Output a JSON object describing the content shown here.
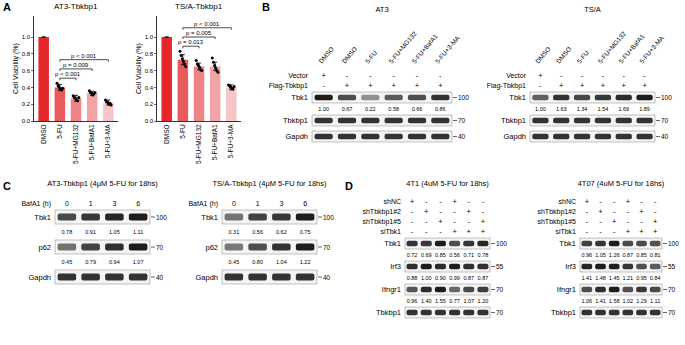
{
  "chart_data": [
    {
      "type": "bar",
      "title": "AT3-Tbkbp1",
      "y_label": "Cell Viability (%)",
      "categories": [
        "DMSO",
        "5-FU",
        "5-FU+MG132",
        "5-FU+BafA1",
        "5-FU+3-MA"
      ],
      "values": [
        1.0,
        0.4,
        0.27,
        0.33,
        0.22
      ],
      "errors": [
        0,
        0.035,
        0.035,
        0.025,
        0.03
      ],
      "points": [
        [],
        [
          0.45,
          0.42,
          0.4,
          0.38,
          0.37,
          0.39
        ],
        [
          0.3,
          0.28,
          0.27,
          0.25,
          0.24,
          0.28
        ],
        [
          0.36,
          0.34,
          0.33,
          0.31,
          0.32,
          0.34
        ],
        [
          0.25,
          0.23,
          0.22,
          0.2,
          0.21,
          0.19
        ]
      ],
      "colors": [
        "#e5262b",
        "#e85a5c",
        "#ee8486",
        "#f2a3a5",
        "#f7c5c7"
      ],
      "ylim": [
        0,
        1.25
      ],
      "yticks": [
        {
          "value": 0,
          "label": "0.0"
        },
        {
          "value": 0.2,
          "label": "0.2"
        },
        {
          "value": 0.4,
          "label": "0.4"
        },
        {
          "value": 0.6,
          "label": "0.6"
        },
        {
          "value": 0.8,
          "label": "0.8"
        },
        {
          "value": 1,
          "label": "1.0"
        }
      ],
      "comparisons": [
        {
          "from": "5-FU",
          "to": "5-FU+MG132",
          "label": "p < 0.001"
        },
        {
          "from": "5-FU",
          "to": "5-FU+BafA1",
          "label": "p = 0.009"
        },
        {
          "from": "5-FU",
          "to": "5-FU+3-MA",
          "label": "p < 0.001"
        }
      ]
    },
    {
      "type": "bar",
      "title": "TS/A-Tbkbp1",
      "y_label": "Cell Viability (%)",
      "categories": [
        "DMSO",
        "5-FU",
        "5-FU+MG132",
        "5-FU+BafA1",
        "5-FU+3-MA"
      ],
      "values": [
        1.0,
        0.73,
        0.65,
        0.65,
        0.4
      ],
      "errors": [
        0,
        0.06,
        0.04,
        0.05,
        0.03
      ],
      "points": [
        [],
        [
          0.83,
          0.78,
          0.74,
          0.71,
          0.68,
          0.65
        ],
        [
          0.72,
          0.68,
          0.66,
          0.64,
          0.61,
          0.6
        ],
        [
          0.75,
          0.7,
          0.66,
          0.63,
          0.6,
          0.58
        ],
        [
          0.43,
          0.42,
          0.4,
          0.39,
          0.38,
          0.41
        ]
      ],
      "colors": [
        "#e5262b",
        "#e85a5c",
        "#ee8486",
        "#f2a3a5",
        "#f7c5c7"
      ],
      "ylim": [
        0,
        1.25
      ],
      "yticks": [
        {
          "value": 0,
          "label": "0.0"
        },
        {
          "value": 0.2,
          "label": "0.2"
        },
        {
          "value": 0.4,
          "label": "0.4"
        },
        {
          "value": 0.6,
          "label": "0.6"
        },
        {
          "value": 0.8,
          "label": "0.8"
        },
        {
          "value": 1,
          "label": "1.0"
        }
      ],
      "comparisons": [
        {
          "from": "5-FU",
          "to": "5-FU+MG132",
          "label": "p = 0.013"
        },
        {
          "from": "5-FU",
          "to": "5-FU+BafA1",
          "label": "p = 0.005"
        },
        {
          "from": "5-FU",
          "to": "5-FU+3-MA",
          "label": "p < 0.001"
        }
      ]
    }
  ],
  "panel_labels": [
    "A",
    "B",
    "C",
    "D"
  ],
  "blots": {
    "B": [
      {
        "title": "AT3",
        "lanes": [
          "DMSO",
          "DMSO",
          "5-FU",
          "5-FU+MG132",
          "5-FU+BafA1",
          "5-FU+3-MA"
        ],
        "conditions": [
          {
            "name": "Vector",
            "signs": [
              "+",
              "-",
              "-",
              "-",
              "-",
              "-"
            ]
          },
          {
            "name": "Flag-Tbkbp1",
            "signs": [
              "-",
              "+",
              "+",
              "+",
              "+",
              "+"
            ]
          }
        ],
        "bands": [
          {
            "name": "Tbk1",
            "kda": "100",
            "quant": [
              "1.00",
              "0.67",
              "0.22",
              "0.58",
              "0.66",
              "0.86"
            ]
          },
          {
            "name": "Tbkbp1",
            "kda": "70"
          },
          {
            "name": "Gapdh",
            "kda": "40"
          }
        ]
      },
      {
        "title": "TS/A",
        "lanes": [
          "DMSO",
          "DMSO",
          "5-FU",
          "5-FU+MG132",
          "5-FU+BafA1",
          "5-FU+3-MA"
        ],
        "conditions": [
          {
            "name": "Vector",
            "signs": [
              "+",
              "-",
              "-",
              "-",
              "-",
              "-"
            ]
          },
          {
            "name": "Flag-Tbkbp1",
            "signs": [
              "-",
              "+",
              "+",
              "+",
              "+",
              "+"
            ]
          }
        ],
        "bands": [
          {
            "name": "Tbk1",
            "kda": "100",
            "quant": [
              "1.00",
              "1.63",
              "1.34",
              "1.54",
              "1.69",
              "1.89"
            ]
          },
          {
            "name": "Tbkbp1",
            "kda": "70"
          },
          {
            "name": "Gapdh",
            "kda": "40"
          }
        ]
      }
    ],
    "C": [
      {
        "title": "AT3-Tbkbp1 (4μM 5-FU for 18hs)",
        "time_label": "BafA1 (h)",
        "times": [
          "0",
          "1",
          "3",
          "6"
        ],
        "bands": [
          {
            "name": "Tbk1",
            "kda": "100",
            "quant": [
              "0.78",
              "0.91",
              "1.05",
              "1.11"
            ]
          },
          {
            "name": "p62",
            "kda": "70",
            "quant": [
              "0.45",
              "0.79",
              "0.94",
              "1.07"
            ]
          },
          {
            "name": "Gapdh",
            "kda": "40"
          }
        ]
      },
      {
        "title": "TS/A-Tbkbp1 (4μM 5-FU for 18hs)",
        "time_label": "BafA1 (h)",
        "times": [
          "0",
          "1",
          "3",
          "6"
        ],
        "bands": [
          {
            "name": "Tbk1",
            "kda": "100",
            "quant": [
              "0.31",
              "0.56",
              "0.62",
              "0.75"
            ]
          },
          {
            "name": "p62",
            "kda": "70",
            "quant": [
              "0.45",
              "0.80",
              "1.04",
              "1.22"
            ]
          },
          {
            "name": "Gapdh",
            "kda": "40"
          }
        ]
      }
    ],
    "D": [
      {
        "title": "4T1 (4uM 5-FU for 18hs)",
        "conditions": [
          {
            "name": "shNC",
            "signs": [
              "+",
              "-",
              "-",
              "+",
              "-",
              "-"
            ]
          },
          {
            "name": "shTbkbp1#2",
            "signs": [
              "-",
              "+",
              "-",
              "-",
              "+",
              "-"
            ]
          },
          {
            "name": "shTbkbp1#5",
            "signs": [
              "-",
              "-",
              "+",
              "-",
              "-",
              "+"
            ]
          },
          {
            "name": "siTbk1",
            "signs": [
              "-",
              "-",
              "-",
              "+",
              "+",
              "+"
            ]
          }
        ],
        "bands": [
          {
            "name": "Tbk1",
            "kda": "100",
            "quant": [
              "0.72",
              "0.69",
              "0.85",
              "0.56",
              "0.71",
              "0.78"
            ]
          },
          {
            "name": "Irf3",
            "kda": "55",
            "quant": [
              "0.88",
              "1.00",
              "0.90",
              "0.99",
              "0.87",
              "0.87"
            ]
          },
          {
            "name": "Ifngr1",
            "kda": "70",
            "quant": [
              "0.96",
              "1.40",
              "1.55",
              "0.77",
              "1.07",
              "1.20"
            ]
          },
          {
            "name": "Tbkbp1",
            "kda": "70"
          }
        ]
      },
      {
        "title": "4T07 (4uM 5-FU for 18hs)",
        "conditions": [
          {
            "name": "shNC",
            "signs": [
              "+",
              "-",
              "-",
              "+",
              "-",
              "-"
            ]
          },
          {
            "name": "shTbkbp1#2",
            "signs": [
              "-",
              "+",
              "-",
              "-",
              "+",
              "-"
            ]
          },
          {
            "name": "shTbkbp1#5",
            "signs": [
              "-",
              "-",
              "+",
              "-",
              "-",
              "+"
            ]
          },
          {
            "name": "siTbk1",
            "signs": [
              "-",
              "-",
              "-",
              "+",
              "+",
              "+"
            ]
          }
        ],
        "bands": [
          {
            "name": "Tbk1",
            "kda": "100",
            "quant": [
              "0.96",
              "1.05",
              "1.26",
              "0.87",
              "0.85",
              "0.81"
            ]
          },
          {
            "name": "Irf3",
            "kda": "55",
            "quant": [
              "1.41",
              "1.48",
              "1.45",
              "1.21",
              "0.95",
              "0.84"
            ]
          },
          {
            "name": "Ifngr1",
            "kda": "70",
            "quant": [
              "1.06",
              "1.41",
              "1.58",
              "1.02",
              "1.29",
              "1.11"
            ]
          },
          {
            "name": "Tbkbp1",
            "kda": "70"
          }
        ]
      }
    ]
  }
}
